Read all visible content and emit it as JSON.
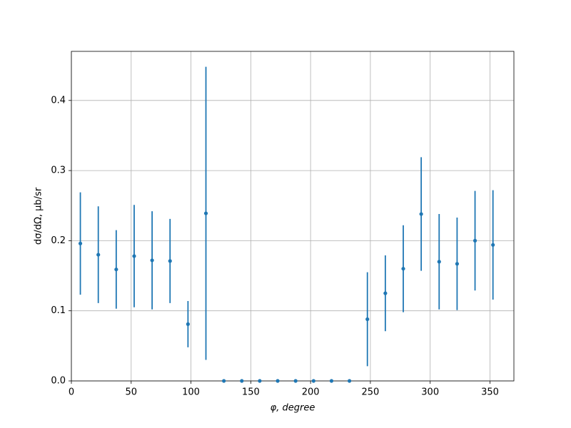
{
  "chart_data": {
    "type": "errorbar",
    "x_label": "φ, degree",
    "y_label": "dσ/dΩ, μb/sr",
    "color": "#1f77b4",
    "grid": true,
    "x": [
      7.5,
      22.5,
      37.5,
      52.5,
      67.5,
      82.5,
      97.5,
      112.5,
      127.5,
      142.5,
      157.5,
      172.5,
      187.5,
      202.5,
      217.5,
      232.5,
      247.5,
      262.5,
      277.5,
      292.5,
      307.5,
      322.5,
      337.5,
      352.5
    ],
    "values": [
      0.196,
      0.18,
      0.159,
      0.178,
      0.172,
      0.171,
      0.081,
      0.239,
      0,
      0,
      0,
      0,
      0,
      0,
      0,
      0,
      0.088,
      0.125,
      0.16,
      0.238,
      0.17,
      0.167,
      0.2,
      0.194
    ],
    "errors": [
      0.073,
      0.069,
      0.056,
      0.073,
      0.07,
      0.06,
      0.033,
      0.209,
      0,
      0,
      0,
      0,
      0,
      0,
      0,
      0,
      0.067,
      0.054,
      0.062,
      0.081,
      0.068,
      0.066,
      0.071,
      0.078
    ],
    "xlim": [
      0,
      370
    ],
    "xticks": [
      0,
      50,
      100,
      150,
      200,
      250,
      300,
      350
    ],
    "ylim": [
      0,
      0.47
    ],
    "yticks": [
      {
        "value": 0,
        "label": "0.0"
      },
      0.1,
      0.2,
      0.3,
      0.4
    ]
  }
}
